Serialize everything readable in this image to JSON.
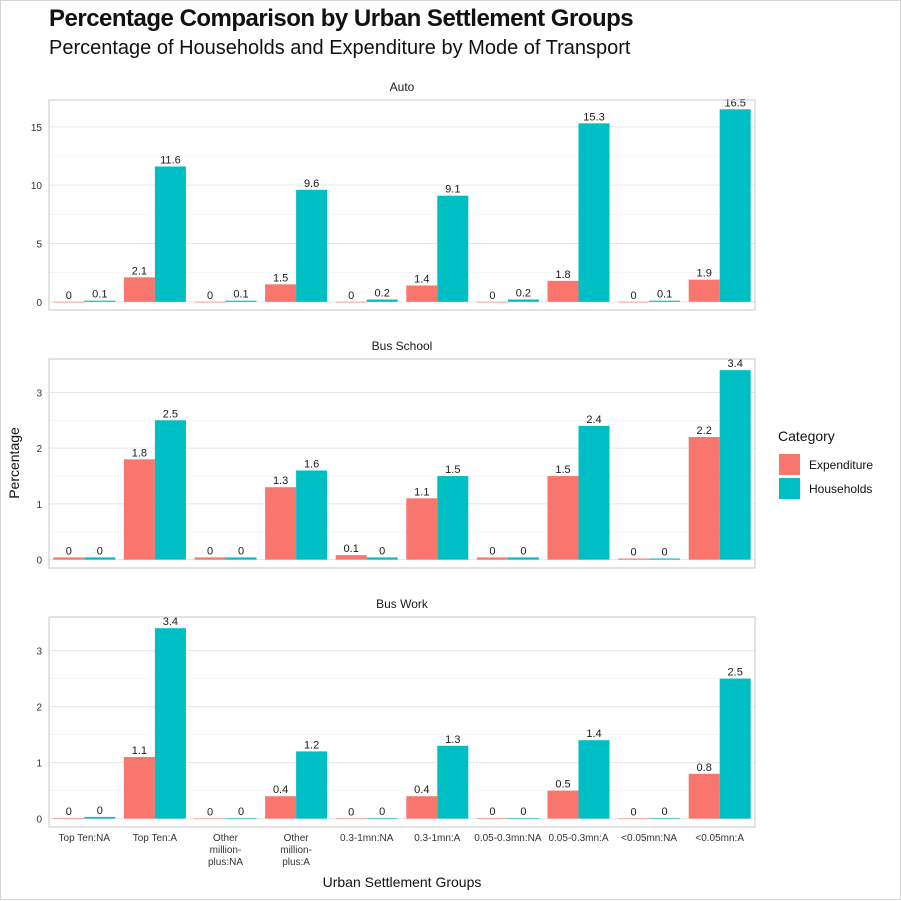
{
  "title": "Percentage Comparison by Urban Settlement Groups",
  "subtitle": "Percentage of Households and Expenditure by Mode of Transport",
  "colors": {
    "expenditure": "#F8766D",
    "households": "#00BFC4"
  },
  "legend": {
    "title": "Category",
    "items": [
      {
        "label": "Expenditure",
        "color": "#F8766D"
      },
      {
        "label": "Households",
        "color": "#00BFC4"
      }
    ]
  },
  "chart_data": {
    "type": "bar",
    "xlabel": "Urban Settlement Groups",
    "ylabel": "Percentage",
    "grid": true,
    "legend_position": "right",
    "categories": [
      "Top Ten:NA",
      "Top Ten:A",
      "Other million-plus:NA",
      "Other million-plus:A",
      "0.3-1mn:NA",
      "0.3-1mn:A",
      "0.05-0.3mn:NA",
      "0.05-0.3mn:A",
      "<0.05mn:NA",
      "<0.05mn:A"
    ],
    "category_lines": [
      [
        "Top Ten:NA"
      ],
      [
        "Top Ten:A"
      ],
      [
        "Other",
        "million-",
        "plus:NA"
      ],
      [
        "Other",
        "million-",
        "plus:A"
      ],
      [
        "0.3-1mn:NA"
      ],
      [
        "0.3-1mn:A"
      ],
      [
        "0.05-0.3mn:NA"
      ],
      [
        "0.05-0.3mn:A"
      ],
      [
        "<0.05mn:NA"
      ],
      [
        "<0.05mn:A"
      ]
    ],
    "panels": [
      {
        "title": "Auto",
        "ylim": [
          -0.7,
          17.3
        ],
        "yticks": [
          0,
          5,
          10,
          15
        ],
        "series": [
          {
            "name": "Expenditure",
            "values": [
              0,
              2.1,
              0,
              1.5,
              0,
              1.4,
              0,
              1.8,
              0,
              1.9
            ]
          },
          {
            "name": "Households",
            "values": [
              0.1,
              11.6,
              0.1,
              9.6,
              0.2,
              9.1,
              0.2,
              15.3,
              0.1,
              16.5
            ]
          }
        ]
      },
      {
        "title": "Bus School",
        "ylim": [
          -0.15,
          3.6
        ],
        "yticks": [
          0,
          1,
          2,
          3
        ],
        "series": [
          {
            "name": "Expenditure",
            "values": [
              0.04,
              1.8,
              0.04,
              1.3,
              0.08,
              1.1,
              0.04,
              1.5,
              0.02,
              2.2
            ]
          },
          {
            "name": "Households",
            "values": [
              0.04,
              2.5,
              0.04,
              1.6,
              0.04,
              1.5,
              0.04,
              2.4,
              0.02,
              3.4
            ]
          }
        ],
        "labels": [
          [
            "0",
            "1.8",
            "0",
            "1.3",
            "0.1",
            "1.1",
            "0",
            "1.5",
            "0",
            "2.2"
          ],
          [
            "0",
            "2.5",
            "0",
            "1.6",
            "0",
            "1.5",
            "0",
            "2.4",
            "0",
            "3.4"
          ]
        ]
      },
      {
        "title": "Bus Work",
        "ylim": [
          -0.15,
          3.6
        ],
        "yticks": [
          0,
          1,
          2,
          3
        ],
        "series": [
          {
            "name": "Expenditure",
            "values": [
              0.01,
              1.1,
              0,
              0.4,
              0,
              0.4,
              0.01,
              0.5,
              0,
              0.8
            ]
          },
          {
            "name": "Households",
            "values": [
              0.03,
              3.4,
              0.01,
              1.2,
              0.01,
              1.3,
              0.01,
              1.4,
              0.01,
              2.5
            ]
          }
        ],
        "labels": [
          [
            "0",
            "1.1",
            "0",
            "0.4",
            "0",
            "0.4",
            "0",
            "0.5",
            "0",
            "0.8"
          ],
          [
            "0",
            "3.4",
            "0",
            "1.2",
            "0",
            "1.3",
            "0",
            "1.4",
            "0",
            "2.5"
          ]
        ]
      }
    ]
  }
}
